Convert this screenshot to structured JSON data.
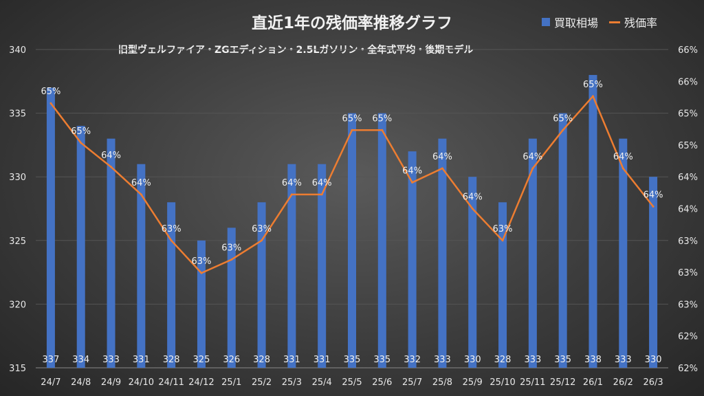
{
  "chart_data": {
    "type": "bar+line",
    "title": "直近1年の残価率推移グラフ",
    "subtitle": "旧型ヴェルファイア・ZGエディション・2.5Lガソリン・全年式平均・後期モデル",
    "categories": [
      "24/7",
      "24/8",
      "24/9",
      "24/10",
      "24/11",
      "24/12",
      "25/1",
      "25/2",
      "25/3",
      "25/4",
      "25/5",
      "25/6",
      "25/7",
      "25/8",
      "25/9",
      "25/10",
      "25/11",
      "25/12",
      "26/1",
      "26/2",
      "26/3"
    ],
    "series": [
      {
        "name": "買取相場",
        "type": "bar",
        "axis": "left",
        "color": "#4472c4",
        "values": [
          337,
          334,
          333,
          331,
          328,
          325,
          326,
          328,
          331,
          331,
          335,
          335,
          332,
          333,
          330,
          328,
          333,
          335,
          338,
          333,
          330
        ]
      },
      {
        "name": "残価率",
        "type": "line",
        "axis": "right",
        "color": "#ed7d31",
        "values": [
          65.39,
          64.83,
          64.49,
          64.1,
          63.45,
          62.99,
          63.18,
          63.45,
          64.1,
          64.1,
          65.01,
          65.01,
          64.27,
          64.47,
          63.9,
          63.45,
          64.47,
          65.01,
          65.49,
          64.47,
          63.93
        ],
        "data_labels": [
          "65%",
          "65%",
          "64%",
          "64%",
          "63%",
          "63%",
          "63%",
          "63%",
          "64%",
          "64%",
          "65%",
          "65%",
          "64%",
          "64%",
          "64%",
          "63%",
          "64%",
          "65%",
          "65%",
          "64%",
          "64%"
        ]
      }
    ],
    "left_axis": {
      "range": [
        315,
        340
      ],
      "ticks": [
        "340",
        "335",
        "330",
        "325",
        "320",
        "315"
      ]
    },
    "right_axis": {
      "range": [
        61.65,
        66.15
      ],
      "ticks": [
        "66%",
        "66%",
        "65%",
        "65%",
        "64%",
        "64%",
        "63%",
        "63%",
        "63%",
        "62%",
        "62%"
      ]
    },
    "grid": true,
    "legend": "top-right"
  }
}
